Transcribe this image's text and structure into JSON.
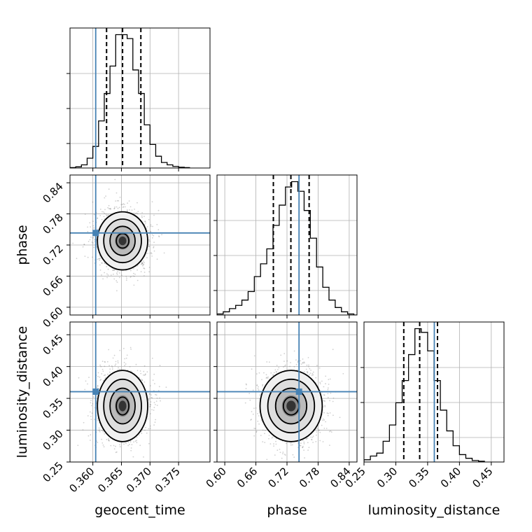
{
  "chart_data": {
    "type": "corner",
    "parameters": [
      "geocent_time",
      "phase",
      "luminosity_distance"
    ],
    "truths": {
      "geocent_time": 0.3605,
      "phase": 0.7432,
      "luminosity_distance": 0.3605
    },
    "line_color": "#4682b4",
    "hist_color": "#000000",
    "grid": true,
    "axes": {
      "geocent_time": {
        "label": "geocent_time",
        "range": [
          0.356,
          0.3805
        ],
        "ticks": [
          0.36,
          0.365,
          0.37,
          0.375
        ],
        "tick_labels": [
          "0.360",
          "0.365",
          "0.370",
          "0.375"
        ]
      },
      "phase": {
        "label": "phase",
        "range": [
          0.585,
          0.855
        ],
        "ticks": [
          0.6,
          0.66,
          0.72,
          0.78,
          0.84
        ],
        "tick_labels": [
          "0.60",
          "0.66",
          "0.72",
          "0.78",
          "0.84"
        ]
      },
      "luminosity_distance": {
        "label": "luminosity_distance",
        "range": [
          0.25,
          0.47
        ],
        "ticks": [
          0.25,
          0.3,
          0.35,
          0.4,
          0.45
        ],
        "tick_labels": [
          "0.25",
          "0.30",
          "0.35",
          "0.40",
          "0.45"
        ]
      }
    },
    "histograms": [
      {
        "param": "geocent_time",
        "bin_edges": [
          0.356,
          0.357,
          0.358,
          0.359,
          0.36,
          0.361,
          0.362,
          0.363,
          0.364,
          0.365,
          0.366,
          0.367,
          0.368,
          0.369,
          0.37,
          0.371,
          0.372,
          0.373,
          0.374,
          0.375,
          0.376,
          0.377
        ],
        "counts": [
          1,
          3,
          8,
          25,
          55,
          120,
          190,
          260,
          340,
          340,
          330,
          250,
          190,
          110,
          60,
          30,
          14,
          8,
          4,
          2,
          1
        ],
        "quantiles": [
          0.3624,
          0.3652,
          0.3684
        ]
      },
      {
        "param": "phase",
        "bin_edges": [
          0.585,
          0.597,
          0.609,
          0.621,
          0.633,
          0.645,
          0.657,
          0.669,
          0.681,
          0.693,
          0.705,
          0.717,
          0.729,
          0.741,
          0.753,
          0.765,
          0.777,
          0.789,
          0.801,
          0.813,
          0.825,
          0.837,
          0.849,
          0.855
        ],
        "counts": [
          1,
          3,
          6,
          9,
          14,
          22,
          36,
          48,
          62,
          84,
          103,
          120,
          125,
          116,
          98,
          72,
          45,
          26,
          14,
          7,
          3,
          1,
          0
        ],
        "quantiles": [
          0.6937,
          0.7275,
          0.7627
        ]
      },
      {
        "param": "luminosity_distance",
        "bin_edges": [
          0.25,
          0.26,
          0.27,
          0.28,
          0.29,
          0.3,
          0.31,
          0.32,
          0.33,
          0.34,
          0.35,
          0.36,
          0.37,
          0.38,
          0.39,
          0.4,
          0.41,
          0.42,
          0.43,
          0.44
        ],
        "counts": [
          3,
          8,
          12,
          28,
          50,
          80,
          110,
          145,
          180,
          175,
          150,
          110,
          70,
          42,
          22,
          10,
          5,
          2,
          1
        ],
        "quantiles": [
          0.3125,
          0.3375,
          0.3655
        ]
      }
    ],
    "posteriors_2d": [
      {
        "x": "geocent_time",
        "y": "phase",
        "mean": [
          0.3652,
          0.728
        ],
        "sd": [
          0.0022,
          0.028
        ]
      },
      {
        "x": "geocent_time",
        "y": "luminosity_distance",
        "mean": [
          0.3652,
          0.338
        ],
        "sd": [
          0.0022,
          0.028
        ]
      },
      {
        "x": "phase",
        "y": "luminosity_distance",
        "mean": [
          0.728,
          0.338
        ],
        "sd": [
          0.03,
          0.028
        ]
      }
    ]
  }
}
